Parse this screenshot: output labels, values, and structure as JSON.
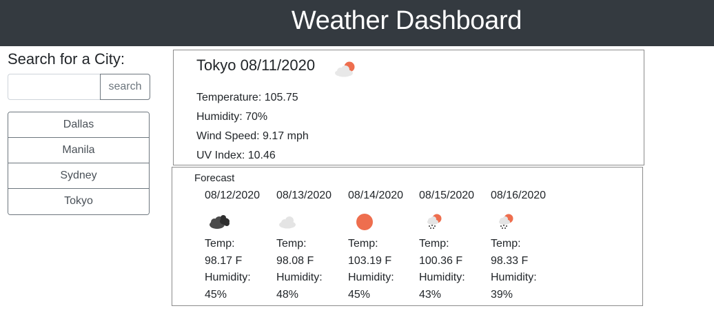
{
  "header": {
    "title": "Weather Dashboard"
  },
  "sidebar": {
    "heading": "Search for a City:",
    "search_value": "",
    "search_placeholder": "",
    "search_button": "search",
    "cities": [
      "Dallas",
      "Manila",
      "Sydney",
      "Tokyo"
    ]
  },
  "current": {
    "title": "Tokyo 08/11/2020",
    "icon": "cloud-sun-icon",
    "temperature": "Temperature: 105.75",
    "humidity": "Humidity: 70%",
    "wind": "Wind Speed: 9.17 mph",
    "uv": "UV Index: 10.46"
  },
  "forecast": {
    "title": "Forecast",
    "days": [
      {
        "date": "08/12/2020",
        "icon": "dark-clouds-icon",
        "temp_label": "Temp:",
        "temp": "98.17 F",
        "humidity_label": "Humidity:",
        "humidity": "45%"
      },
      {
        "date": "08/13/2020",
        "icon": "cloud-icon",
        "temp_label": "Temp:",
        "temp": "98.08 F",
        "humidity_label": "Humidity:",
        "humidity": "48%"
      },
      {
        "date": "08/14/2020",
        "icon": "sun-icon",
        "temp_label": "Temp:",
        "temp": "103.19 F",
        "humidity_label": "Humidity:",
        "humidity": "45%"
      },
      {
        "date": "08/15/2020",
        "icon": "sun-rain-icon",
        "temp_label": "Temp:",
        "temp": "100.36 F",
        "humidity_label": "Humidity:",
        "humidity": "43%"
      },
      {
        "date": "08/16/2020",
        "icon": "sun-rain-icon",
        "temp_label": "Temp:",
        "temp": "98.33 F",
        "humidity_label": "Humidity:",
        "humidity": "39%"
      }
    ]
  },
  "colors": {
    "header_bg": "#343a40",
    "sun": "#ee6e4e",
    "cloud_light": "#e8e8e8",
    "cloud_dark": "#3c3c3c"
  }
}
